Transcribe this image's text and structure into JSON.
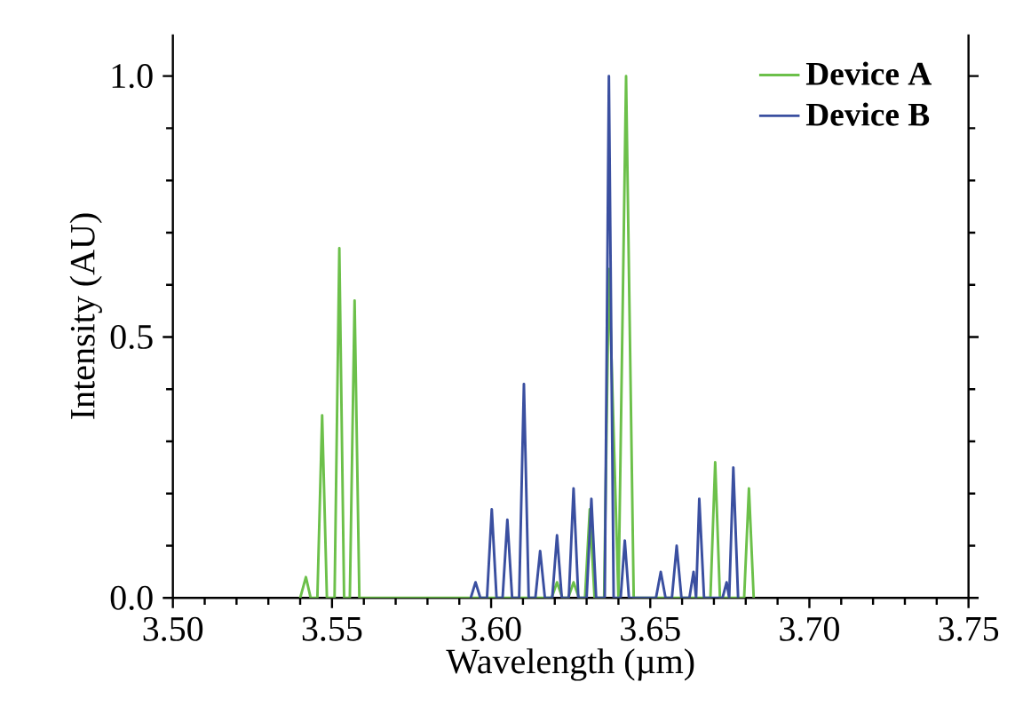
{
  "chart_data": {
    "type": "line",
    "xlabel": "Wavelength (µm)",
    "ylabel": "Intensity (AU)",
    "xlim": [
      3.5,
      3.75
    ],
    "ylim": [
      0,
      1.08
    ],
    "xticks": [
      {
        "value": 3.5,
        "label": "3.50"
      },
      {
        "value": 3.55,
        "label": "3.55"
      },
      {
        "value": 3.6,
        "label": "3.60"
      },
      {
        "value": 3.65,
        "label": "3.65"
      },
      {
        "value": 3.7,
        "label": "3.70"
      },
      {
        "value": 3.75,
        "label": "3.75"
      }
    ],
    "yticks": [
      {
        "value": 0,
        "label": "0.0"
      },
      {
        "value": 0.5,
        "label": "0.5"
      },
      {
        "value": 1.0,
        "label": "1.0"
      }
    ],
    "legend": "top right",
    "grid": false,
    "marker": "none",
    "line_style": "solid",
    "series": [
      {
        "name": "Device A",
        "color": "#6cc04a",
        "x": [
          3.54,
          3.5418,
          3.5433,
          3.5454,
          3.5469,
          3.5484,
          3.5508,
          3.5523,
          3.5538,
          3.5556,
          3.5571,
          3.5586,
          3.619,
          3.6207,
          3.6224,
          3.6242,
          3.6259,
          3.6276,
          3.6295,
          3.631,
          3.6325,
          3.6355,
          3.637,
          3.64,
          3.6424,
          3.6448,
          3.6689,
          3.6704,
          3.6719,
          3.6795,
          3.681,
          3.6825
        ],
        "values": [
          0,
          0.04,
          0,
          0,
          0.35,
          0,
          0,
          0.67,
          0,
          0,
          0.57,
          0,
          0,
          0.03,
          0,
          0,
          0.03,
          0,
          0,
          0.17,
          0,
          0,
          0.63,
          0,
          1.0,
          0,
          0,
          0.26,
          0,
          0,
          0.21,
          0
        ]
      },
      {
        "name": "Device B",
        "color": "#3a4fa0",
        "x": [
          3.5936,
          3.5951,
          3.5966,
          3.5987,
          3.6002,
          3.6017,
          3.6036,
          3.6051,
          3.6066,
          3.6088,
          3.6103,
          3.6118,
          3.6139,
          3.6154,
          3.6169,
          3.6192,
          3.6207,
          3.6222,
          3.6244,
          3.6259,
          3.6274,
          3.63,
          3.6315,
          3.633,
          3.6357,
          3.637,
          3.6385,
          3.6407,
          3.642,
          3.6433,
          3.6518,
          3.6533,
          3.6548,
          3.6568,
          3.6583,
          3.6598,
          3.6623,
          3.6636,
          3.6644,
          3.6654,
          3.6669,
          3.6727,
          3.674,
          3.6748,
          3.6761,
          3.6776
        ],
        "values": [
          0,
          0.03,
          0,
          0,
          0.17,
          0,
          0,
          0.15,
          0,
          0,
          0.41,
          0,
          0,
          0.09,
          0,
          0,
          0.12,
          0,
          0,
          0.21,
          0,
          0,
          0.19,
          0,
          0,
          1.0,
          0,
          0,
          0.11,
          0,
          0,
          0.05,
          0,
          0,
          0.1,
          0,
          0,
          0.05,
          0,
          0.19,
          0,
          0,
          0.03,
          0,
          0.25,
          0
        ]
      }
    ]
  }
}
